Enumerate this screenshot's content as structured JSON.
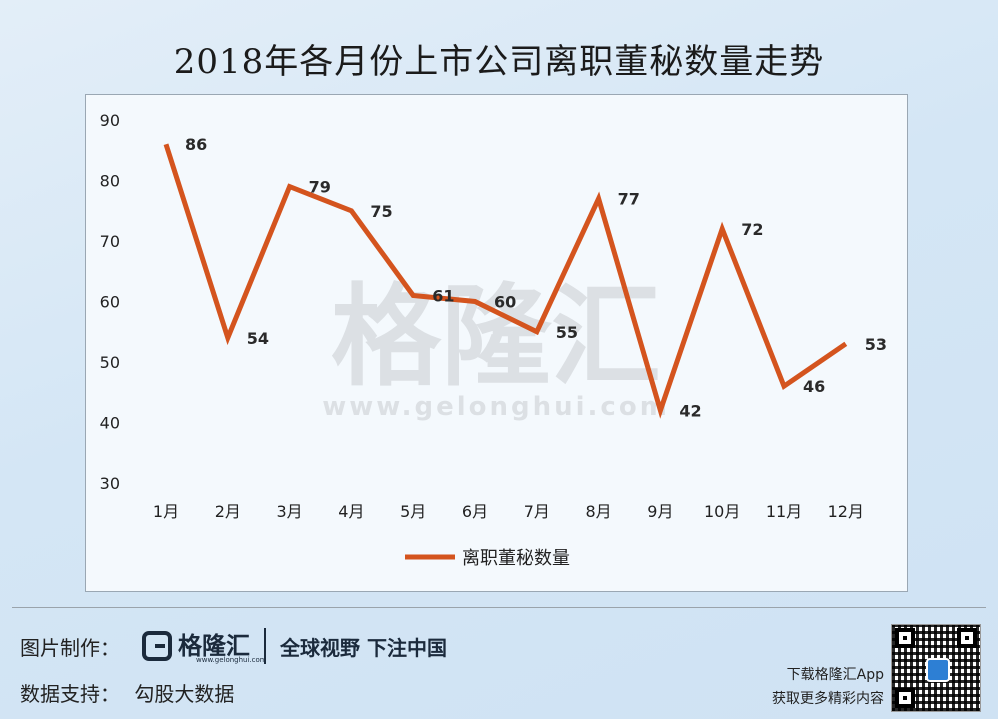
{
  "title": "2018年各月份上市公司离职董秘数量走势",
  "chart_data": {
    "type": "line",
    "categories": [
      "1月",
      "2月",
      "3月",
      "4月",
      "5月",
      "6月",
      "7月",
      "8月",
      "9月",
      "10月",
      "11月",
      "12月"
    ],
    "series": [
      {
        "name": "离职董秘数量",
        "values": [
          86,
          54,
          79,
          75,
          61,
          60,
          55,
          77,
          42,
          72,
          46,
          53
        ],
        "color": "#d4541e"
      }
    ],
    "ylim": [
      30,
      90
    ],
    "yticks": [
      90,
      80,
      70,
      60,
      50,
      40,
      30
    ],
    "grid": false,
    "legend_position": "bottom"
  },
  "watermark": {
    "logo": "格隆汇",
    "url": "www.gelonghui.com"
  },
  "footer": {
    "credit_label": "图片制作：",
    "brand_name": "格隆汇",
    "brand_sub": "www.gelonghui.com",
    "slogan": "全球视野 下注中国",
    "support_label": "数据支持：",
    "support_source": "勾股大数据",
    "app_line1": "下载格隆汇App",
    "app_line2": "获取更多精彩内容"
  }
}
